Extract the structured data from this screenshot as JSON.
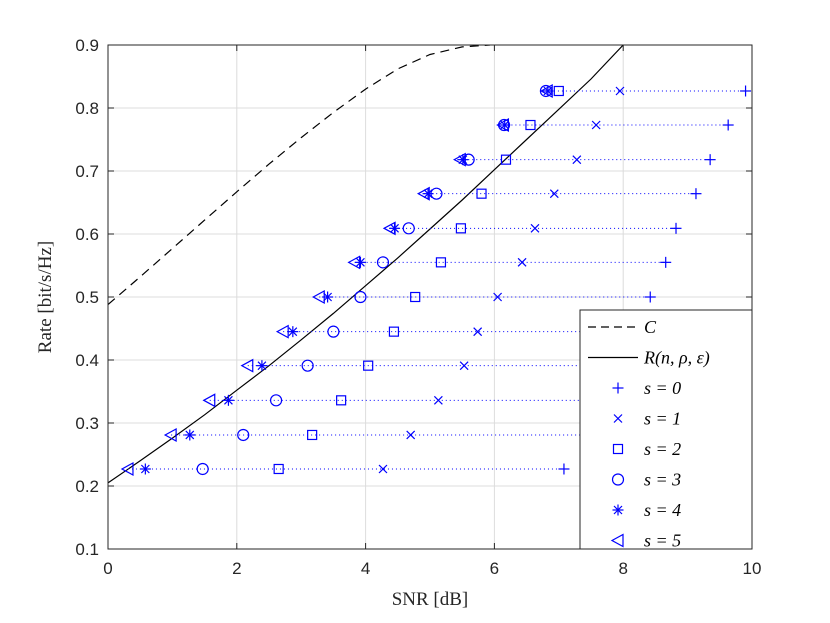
{
  "chart_data": {
    "type": "line",
    "title": "",
    "xlabel": "SNR [dB]",
    "ylabel": "Rate [bit/s/Hz]",
    "xlim": [
      0,
      10
    ],
    "ylim": [
      0.1,
      0.9
    ],
    "xticks": [
      "0",
      "2",
      "4",
      "6",
      "8",
      "10"
    ],
    "yticks": [
      "0.1",
      "0.2",
      "0.3",
      "0.4",
      "0.5",
      "0.6",
      "0.7",
      "0.8",
      "0.9"
    ],
    "grid": true,
    "legend_position": "bottom-right",
    "curves": [
      {
        "name": "C",
        "style": "dashed",
        "color": "#000000",
        "x": [
          0,
          0.5,
          1,
          1.5,
          2,
          2.5,
          3,
          3.5,
          4,
          4.5,
          5,
          5.5,
          5.93
        ],
        "y": [
          0.488,
          0.532,
          0.577,
          0.622,
          0.667,
          0.711,
          0.753,
          0.793,
          0.83,
          0.862,
          0.885,
          0.897,
          0.9
        ]
      },
      {
        "name": "R(n, ρ, ε)",
        "style": "solid",
        "color": "#000000",
        "x": [
          0,
          0.5,
          1,
          1.5,
          2,
          2.5,
          3,
          3.5,
          4,
          4.5,
          5,
          5.5,
          6,
          6.5,
          7,
          7.5,
          8.0
        ],
        "y": [
          0.205,
          0.24,
          0.276,
          0.313,
          0.352,
          0.391,
          0.432,
          0.474,
          0.518,
          0.562,
          0.608,
          0.654,
          0.702,
          0.75,
          0.798,
          0.846,
          0.9
        ]
      }
    ],
    "rates": [
      0.227,
      0.281,
      0.336,
      0.391,
      0.445,
      0.5,
      0.555,
      0.609,
      0.664,
      0.718,
      0.773,
      0.827
    ],
    "series": [
      {
        "name": "s = 0",
        "marker": "plus",
        "color": "#0000ff",
        "x": [
          7.08,
          7.72,
          8.1,
          8.5,
          8.3,
          8.42,
          8.66,
          8.82,
          9.13,
          9.35,
          9.63,
          9.9
        ]
      },
      {
        "name": "s = 1",
        "marker": "x",
        "color": "#0000ff",
        "x": [
          4.27,
          4.7,
          5.13,
          5.53,
          5.74,
          6.05,
          6.43,
          6.63,
          6.93,
          7.28,
          7.58,
          7.95
        ]
      },
      {
        "name": "s = 2",
        "marker": "square",
        "color": "#0000ff",
        "x": [
          2.65,
          3.17,
          3.62,
          4.04,
          4.44,
          4.77,
          5.17,
          5.48,
          5.8,
          6.18,
          6.56,
          7.0
        ]
      },
      {
        "name": "s = 3",
        "marker": "circle",
        "color": "#0000ff",
        "x": [
          1.47,
          2.1,
          2.61,
          3.1,
          3.5,
          3.92,
          4.27,
          4.67,
          5.1,
          5.6,
          6.15,
          6.8
        ]
      },
      {
        "name": "s = 4",
        "marker": "asterisk",
        "color": "#0000ff",
        "x": [
          0.58,
          1.27,
          1.87,
          2.39,
          2.87,
          3.41,
          3.92,
          4.45,
          4.97,
          5.51,
          6.16,
          6.83
        ]
      },
      {
        "name": "s = 5",
        "marker": "triangle-left",
        "color": "#0000ff",
        "x": [
          0.31,
          0.98,
          1.58,
          2.17,
          2.72,
          3.28,
          3.83,
          4.38,
          4.91,
          5.47,
          6.14,
          6.82
        ]
      }
    ],
    "legend": {
      "curve_labels": [
        "C",
        "R(n, ρ, ε)"
      ],
      "series_labels": [
        "s = 0",
        "s = 1",
        "s = 2",
        "s = 3",
        "s = 4",
        "s = 5"
      ]
    }
  }
}
